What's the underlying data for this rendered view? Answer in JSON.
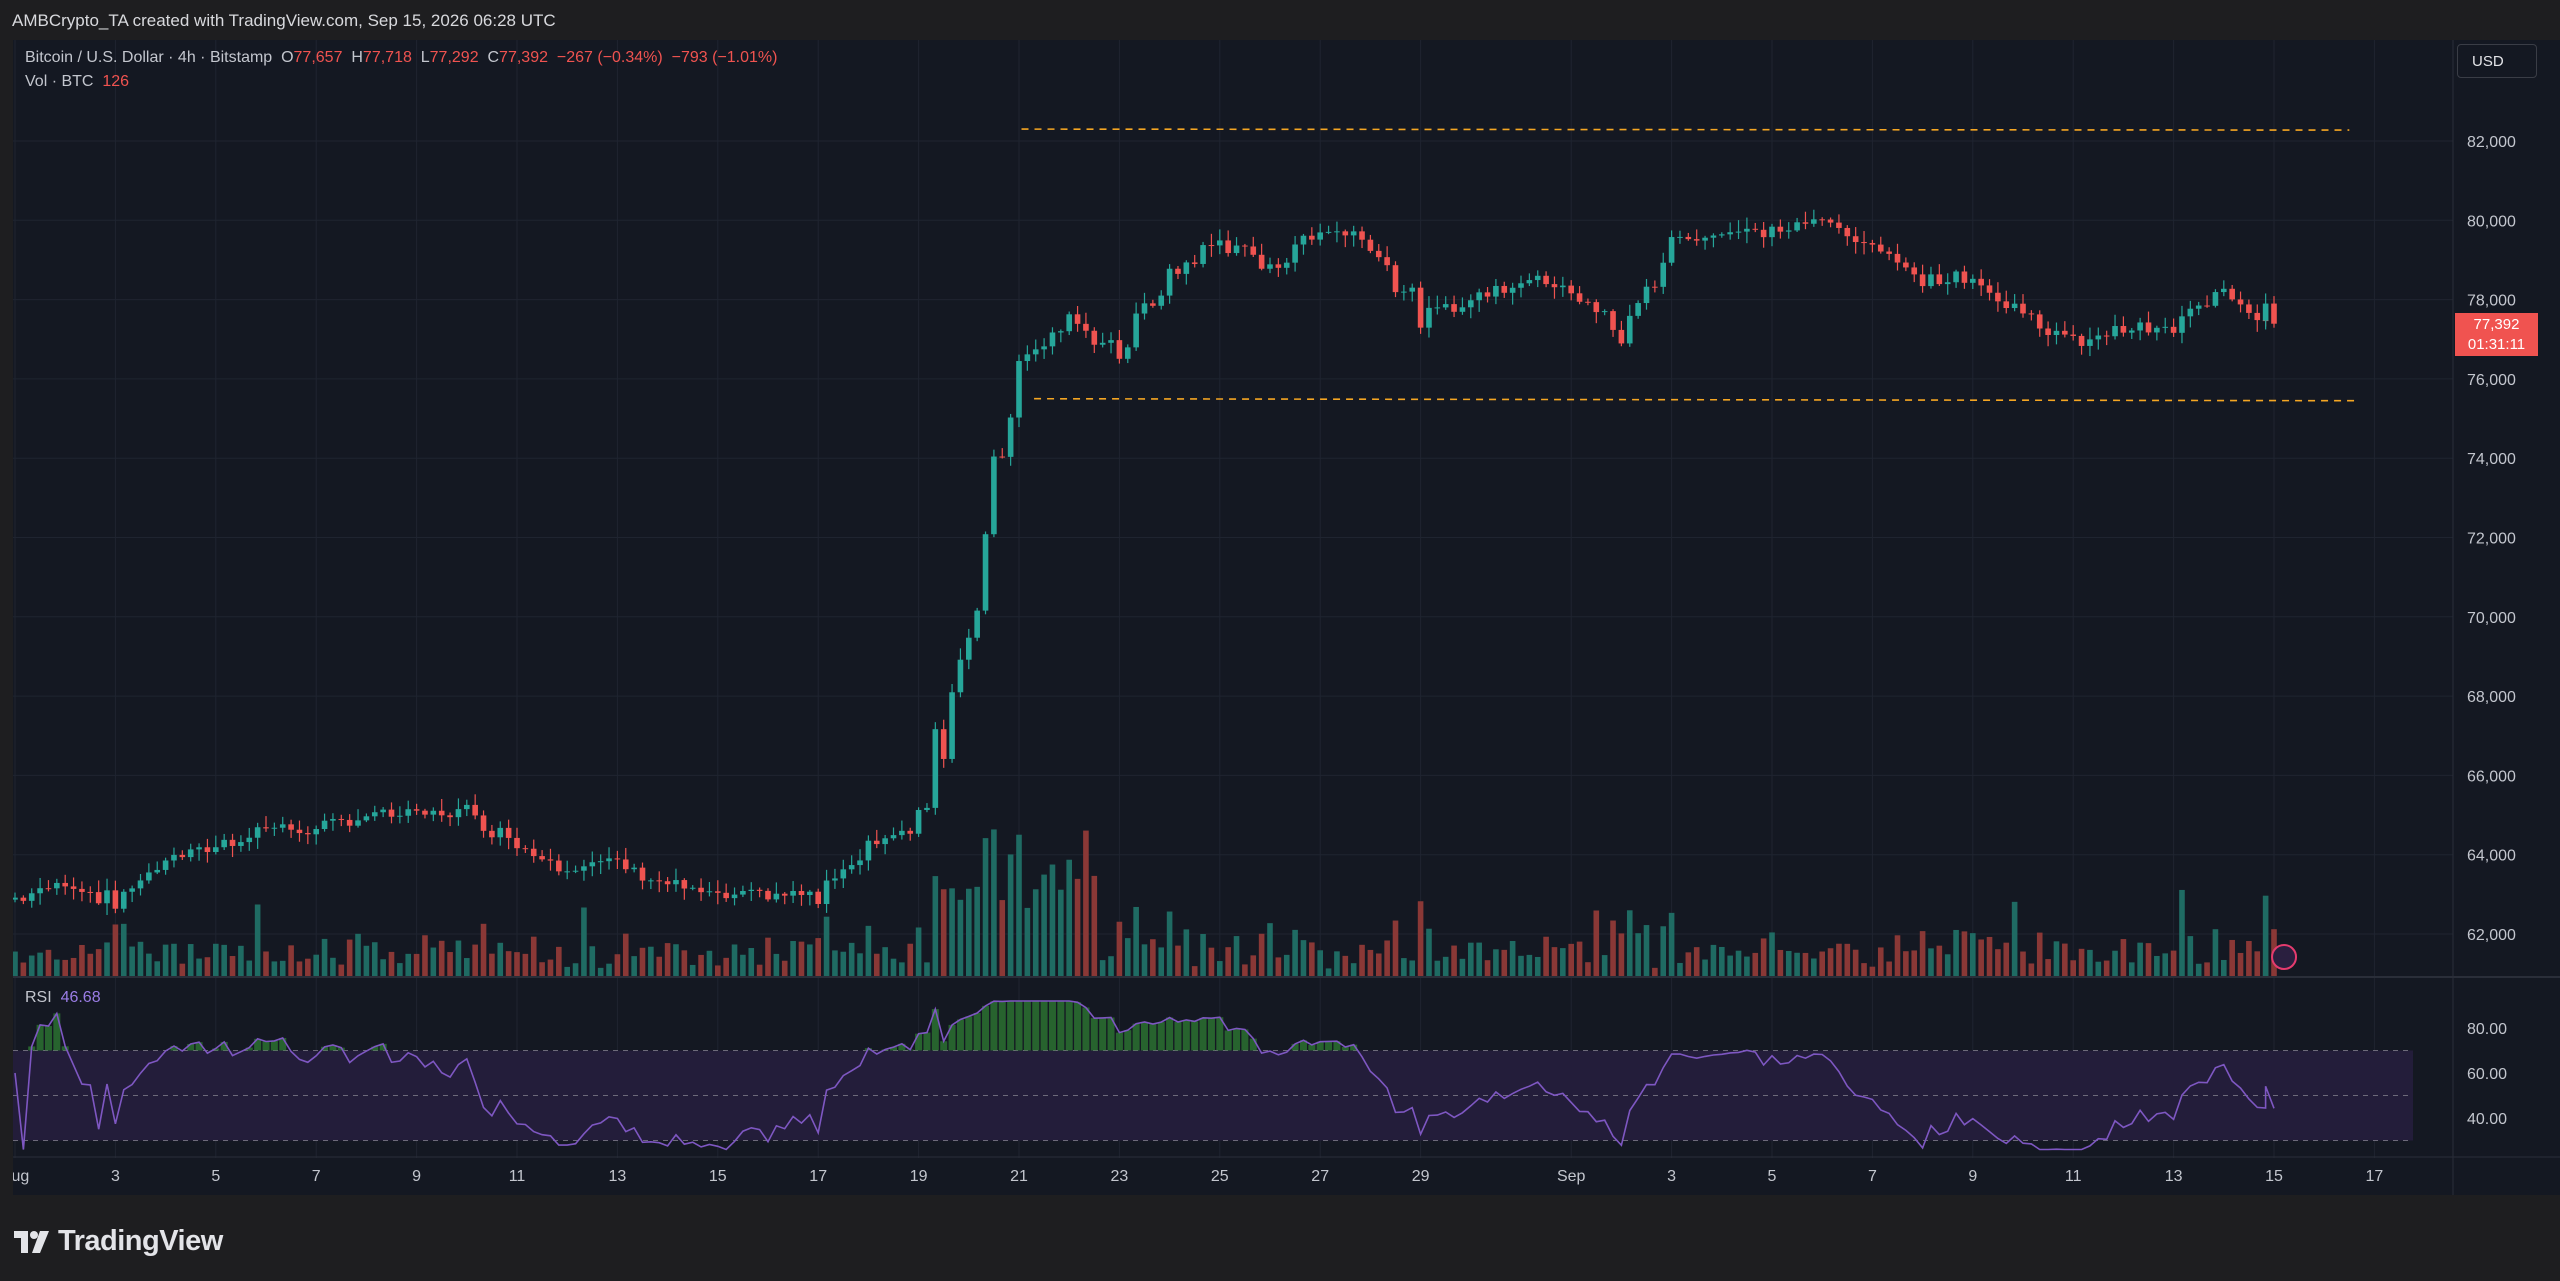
{
  "header": {
    "attribution": "AMBCrypto_TA created with TradingView.com, Sep 15, 2026 06:28 UTC"
  },
  "legend": {
    "symbol": "Bitcoin / U.S. Dollar · 4h · Bitstamp",
    "o_label": "O",
    "o_value": "77,657",
    "h_label": "H",
    "h_value": "77,718",
    "l_label": "L",
    "l_value": "77,292",
    "c_label": "C",
    "c_value": "77,392",
    "change": "−267 (−0.34%)",
    "change2": "−793 (−1.01%)",
    "vol_label": "Vol · BTC",
    "vol_value": "126",
    "rsi_label": "RSI",
    "rsi_value": "46.68"
  },
  "currency_button": "USD",
  "price_tag": {
    "price": "77,392",
    "countdown": "01:31:11"
  },
  "brand": "TradingView",
  "colors": {
    "up": "#26a69a",
    "down": "#ef5350",
    "rsi": "#7e57c2",
    "level": "#f5a623",
    "bg": "#141822"
  },
  "chart_data": {
    "type": "candlestick",
    "y_ticks": [
      "82,000",
      "80,000",
      "78,000",
      "76,000",
      "74,000",
      "72,000",
      "70,000",
      "68,000",
      "66,000",
      "64,000",
      "62,000"
    ],
    "y_values": [
      82000,
      80000,
      78000,
      76000,
      74000,
      72000,
      70000,
      68000,
      66000,
      64000,
      62000
    ],
    "ylim": [
      61000,
      83500
    ],
    "x_ticks": [
      "Aug",
      "3",
      "5",
      "7",
      "9",
      "11",
      "13",
      "15",
      "17",
      "19",
      "21",
      "23",
      "25",
      "27",
      "29",
      "Sep",
      "3",
      "5",
      "7",
      "9",
      "11",
      "13",
      "15",
      "17"
    ],
    "x_tick_dates": [
      "2026-08-01",
      "2026-08-03",
      "2026-08-05",
      "2026-08-07",
      "2026-08-09",
      "2026-08-11",
      "2026-08-13",
      "2026-08-15",
      "2026-08-17",
      "2026-08-19",
      "2026-08-21",
      "2026-08-23",
      "2026-08-25",
      "2026-08-27",
      "2026-08-29",
      "2026-09-01",
      "2026-09-03",
      "2026-09-05",
      "2026-09-07",
      "2026-09-09",
      "2026-09-11",
      "2026-09-13",
      "2026-09-15",
      "2026-09-17"
    ],
    "resistance_level": 82300,
    "support_level": 75500,
    "last_price": 77392,
    "close_series": [
      [
        "2026-08-01",
        62900
      ],
      [
        "2026-08-02",
        63300
      ],
      [
        "2026-08-03",
        62800
      ],
      [
        "2026-08-04",
        63900
      ],
      [
        "2026-08-05",
        64200
      ],
      [
        "2026-08-06",
        64700
      ],
      [
        "2026-08-07",
        64600
      ],
      [
        "2026-08-08",
        65000
      ],
      [
        "2026-08-09",
        65000
      ],
      [
        "2026-08-10",
        65100
      ],
      [
        "2026-08-11",
        64300
      ],
      [
        "2026-08-12",
        63700
      ],
      [
        "2026-08-13",
        63800
      ],
      [
        "2026-08-14",
        63300
      ],
      [
        "2026-08-15",
        62900
      ],
      [
        "2026-08-16",
        63000
      ],
      [
        "2026-08-17",
        63000
      ],
      [
        "2026-08-18",
        64300
      ],
      [
        "2026-08-19",
        64600
      ],
      [
        "2026-08-20",
        70000
      ],
      [
        "2026-08-21",
        76500
      ],
      [
        "2026-08-22",
        77400
      ],
      [
        "2026-08-23",
        76700
      ],
      [
        "2026-08-24",
        78600
      ],
      [
        "2026-08-25",
        79500
      ],
      [
        "2026-08-26",
        78800
      ],
      [
        "2026-08-27",
        79800
      ],
      [
        "2026-08-28",
        79600
      ],
      [
        "2026-08-29",
        77500
      ],
      [
        "2026-08-30",
        78000
      ],
      [
        "2026-08-31",
        78500
      ],
      [
        "2026-09-01",
        78400
      ],
      [
        "2026-09-02",
        77000
      ],
      [
        "2026-09-03",
        79500
      ],
      [
        "2026-09-04",
        79700
      ],
      [
        "2026-09-05",
        79700
      ],
      [
        "2026-09-06",
        80000
      ],
      [
        "2026-09-07",
        79400
      ],
      [
        "2026-09-08",
        78500
      ],
      [
        "2026-09-09",
        78600
      ],
      [
        "2026-09-10",
        77600
      ],
      [
        "2026-09-11",
        76900
      ],
      [
        "2026-09-12",
        77300
      ],
      [
        "2026-09-13",
        77200
      ],
      [
        "2026-09-14",
        78300
      ],
      [
        "2026-09-15",
        77392
      ]
    ],
    "rsi": {
      "levels": [
        70,
        50,
        30
      ],
      "y_ticks": [
        "80.00",
        "60.00",
        "40.00"
      ],
      "y_values": [
        80,
        60,
        40
      ],
      "last": 46.68,
      "overbought_peak_date": "2026-08-21"
    }
  }
}
